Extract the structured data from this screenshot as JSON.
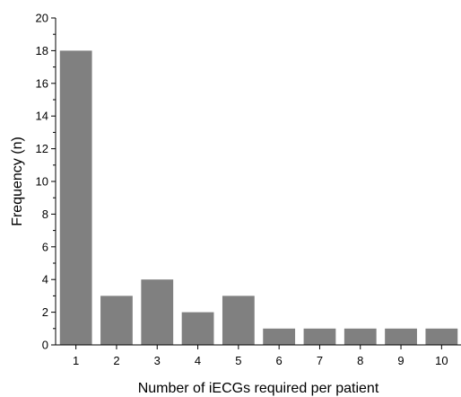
{
  "chart_data": {
    "type": "bar",
    "categories": [
      "1",
      "2",
      "3",
      "4",
      "5",
      "6",
      "7",
      "8",
      "9",
      "10"
    ],
    "values": [
      18,
      3,
      4,
      2,
      3,
      1,
      1,
      1,
      1,
      1
    ],
    "xlabel": "Number of iECGs required per patient",
    "ylabel": "Frequency (n)",
    "ylim": [
      0,
      20
    ],
    "yticks": [
      "0",
      "2",
      "4",
      "6",
      "8",
      "10",
      "12",
      "14",
      "16",
      "18",
      "20"
    ],
    "grid": false,
    "legend": "none",
    "bar_color": "#808080",
    "axis_color": "#000000"
  }
}
